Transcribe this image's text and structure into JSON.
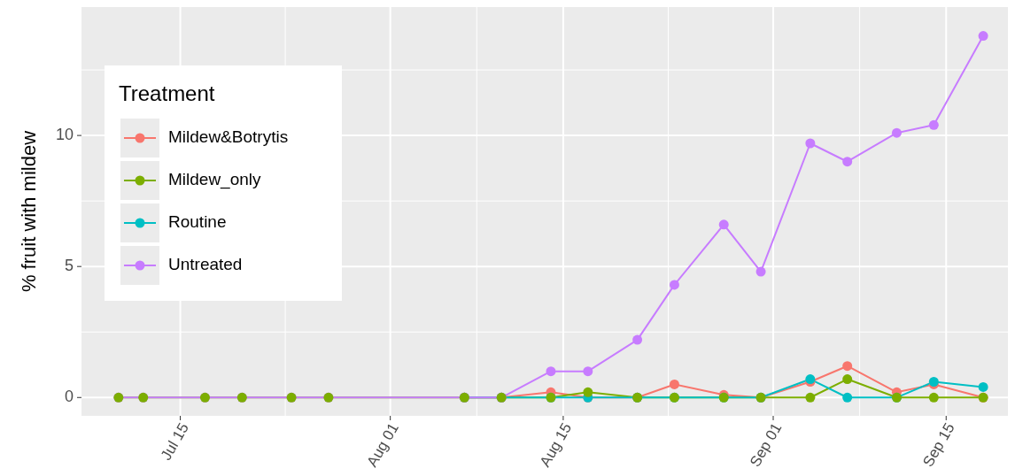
{
  "chart_data": {
    "type": "line",
    "ylabel": "% fruit with mildew",
    "legend_title": "Treatment",
    "legend": "top left",
    "grid": true,
    "marker": "circle",
    "line_style": "solid",
    "x": [
      "--07-10",
      "--07-12",
      "--07-17",
      "--07-20",
      "--07-24",
      "--07-27",
      "--08-07",
      "--08-10",
      "--08-14",
      "--08-17",
      "--08-21",
      "--08-24",
      "--08-28",
      "--08-31",
      "--09-04",
      "--09-07",
      "--09-11",
      "--09-14",
      "--09-18"
    ],
    "xlim": [
      "--07-07",
      "--09-20"
    ],
    "xticks": [
      {
        "value": "--07-15",
        "label": "Jul 15"
      },
      {
        "value": "--08-01",
        "label": "Aug 01"
      },
      {
        "value": "--08-15",
        "label": "Aug 15"
      },
      {
        "value": "--09-01",
        "label": "Sep 01"
      },
      {
        "value": "--09-15",
        "label": "Sep 15"
      }
    ],
    "ylim": [
      -0.7,
      14.9
    ],
    "yticks": [
      0,
      5,
      10
    ],
    "series": [
      {
        "name": "Mildew&Botrytis",
        "color": "#f8766d",
        "values": [
          null,
          null,
          null,
          null,
          null,
          null,
          0,
          0,
          0.2,
          0,
          0,
          0.5,
          0.1,
          0,
          0.6,
          1.2,
          0.2,
          0.5,
          0
        ]
      },
      {
        "name": "Mildew_only",
        "color": "#7cae00",
        "values": [
          0,
          0,
          0,
          0,
          0,
          0,
          0,
          0,
          0,
          0.2,
          0,
          0,
          0,
          0,
          0,
          0.7,
          0,
          0,
          0
        ]
      },
      {
        "name": "Routine",
        "color": "#00bfc4",
        "values": [
          null,
          null,
          null,
          null,
          null,
          null,
          0,
          0,
          0,
          0,
          0,
          0,
          0,
          0,
          0.7,
          0,
          0,
          0.6,
          0.4
        ]
      },
      {
        "name": "Untreated",
        "color": "#c77cff",
        "values": [
          0,
          0,
          0,
          0,
          0,
          0,
          0,
          0,
          1,
          1,
          2.2,
          4.3,
          6.6,
          4.8,
          9.7,
          9,
          10.1,
          10.4,
          13.8
        ]
      }
    ]
  }
}
